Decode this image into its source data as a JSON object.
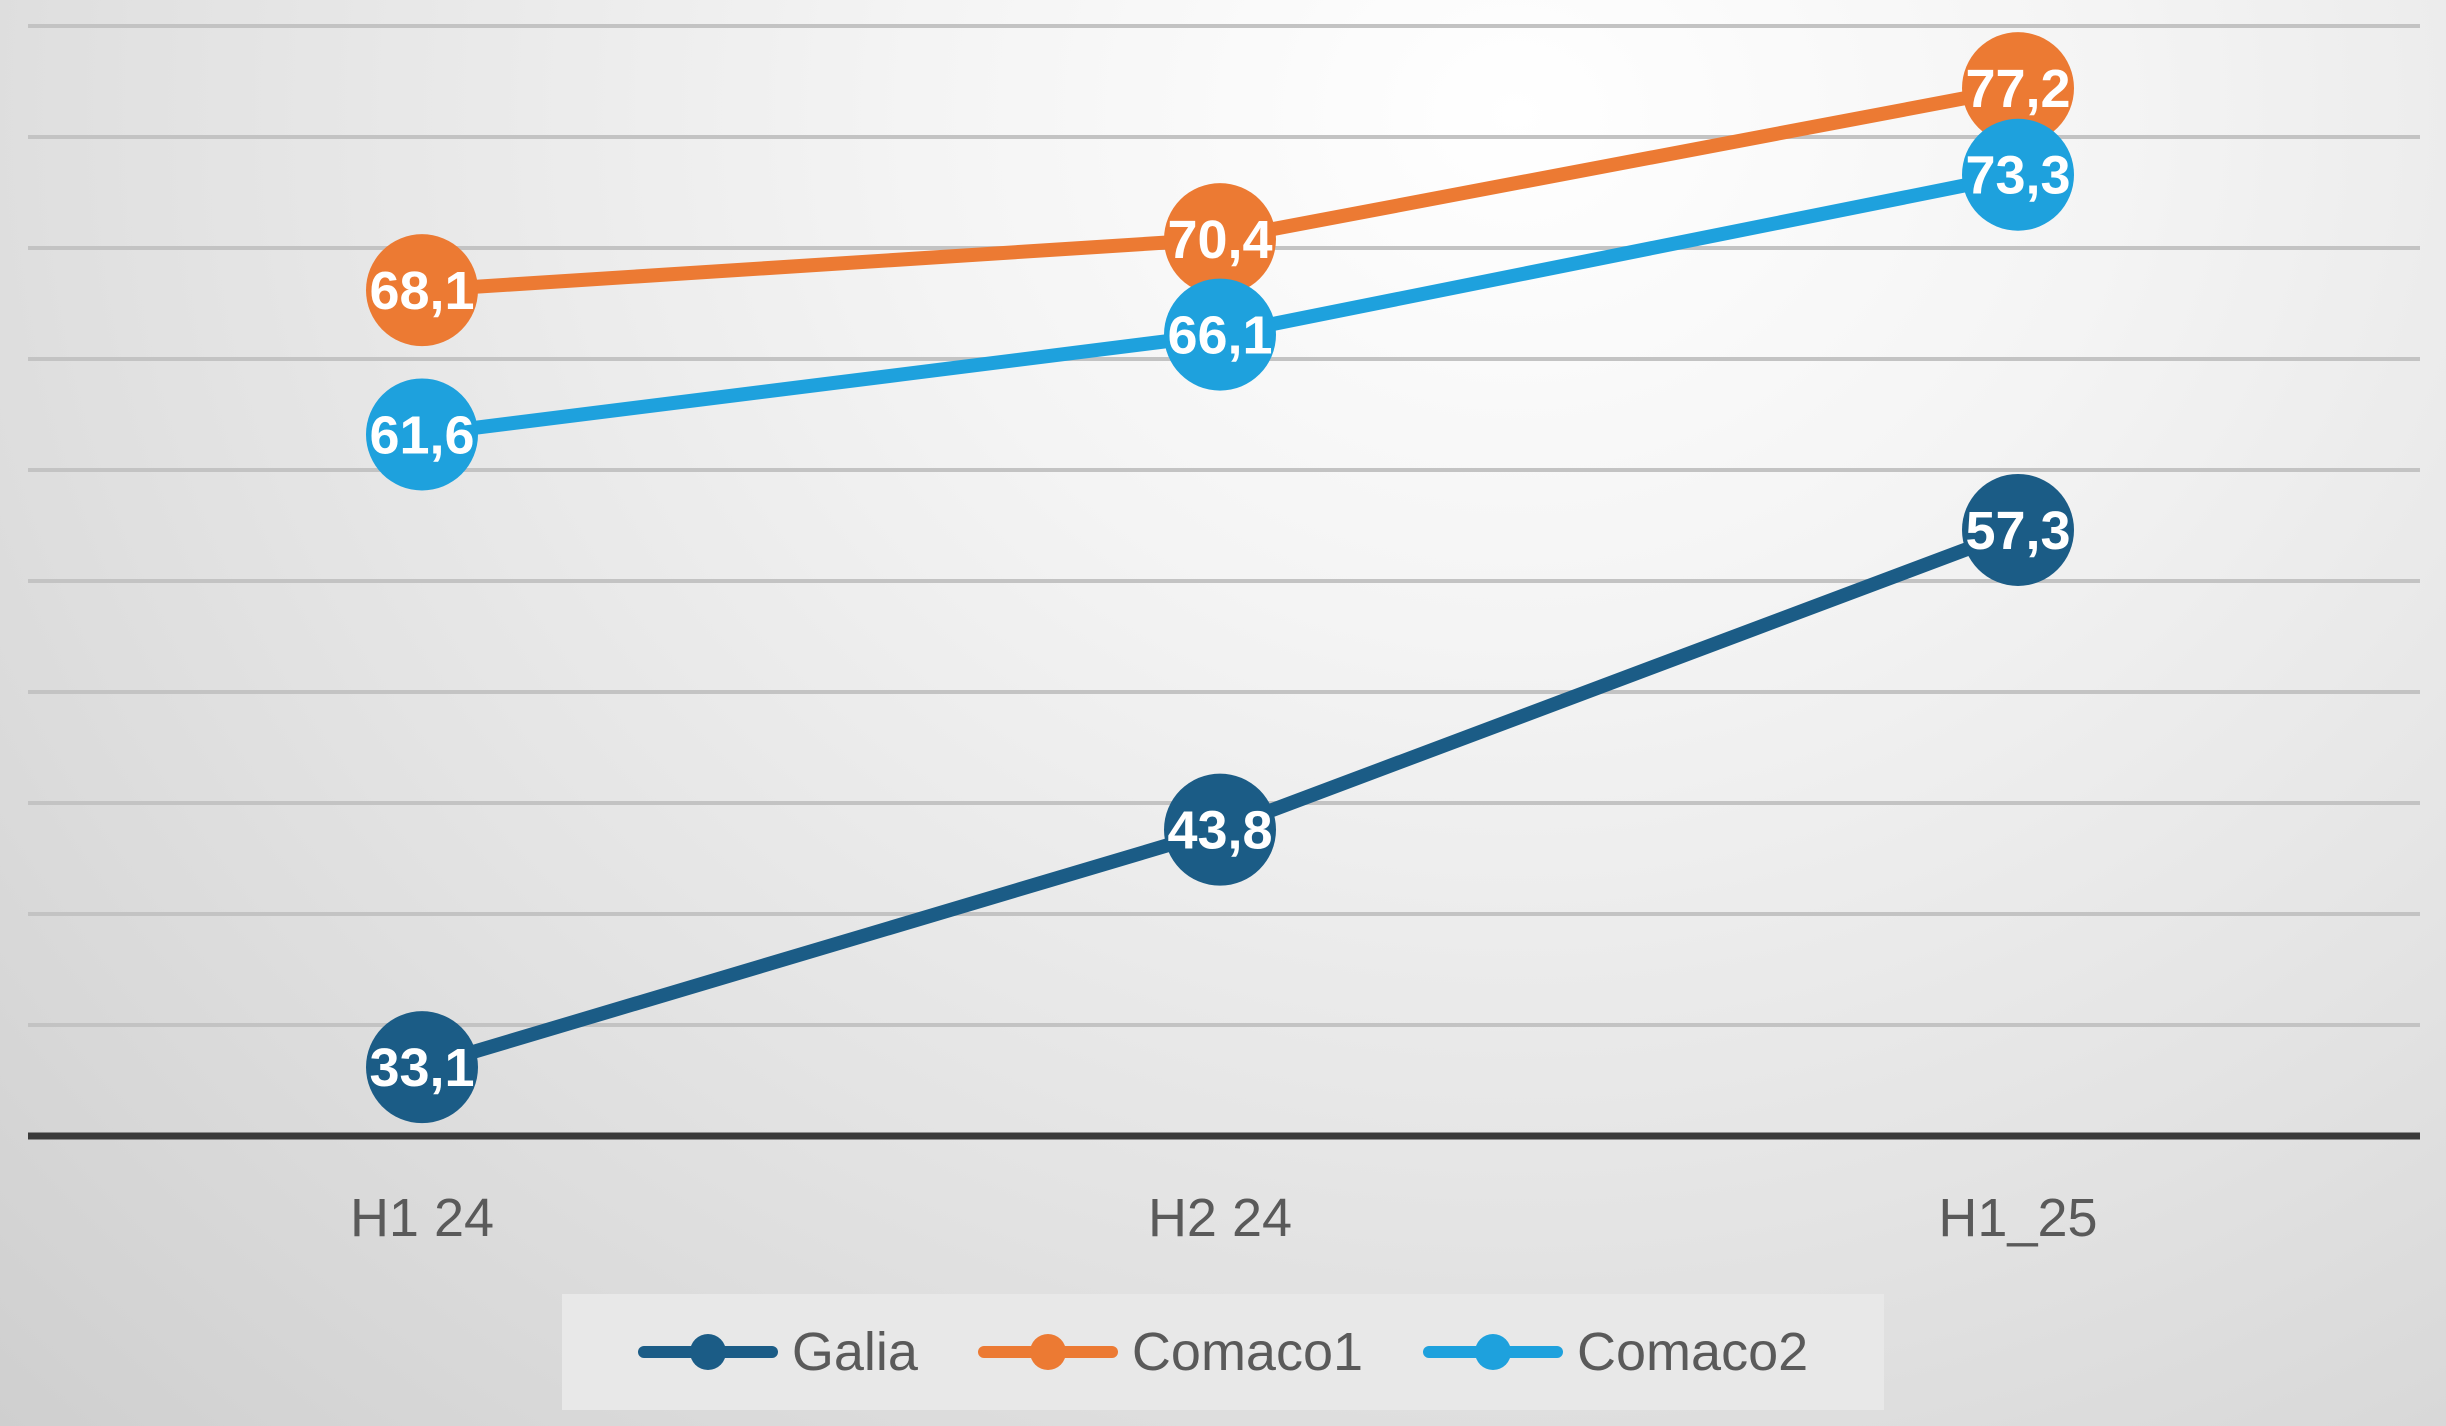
{
  "chart_data": {
    "type": "line",
    "title": "",
    "xlabel": "",
    "ylabel": "",
    "categories": [
      "H1 24",
      "H2 24",
      "H1_25"
    ],
    "ylim": [
      30,
      80
    ],
    "grid": true,
    "legend_position": "bottom",
    "series": [
      {
        "name": "Galia",
        "color": "#1b5c86",
        "values": [
          33.1,
          43.8,
          57.3
        ],
        "labels": [
          "33,1",
          "43,8",
          "57,3"
        ]
      },
      {
        "name": "Comaco1",
        "color": "#ec7a33",
        "values": [
          68.1,
          70.4,
          77.2
        ],
        "labels": [
          "68,1",
          "70,4",
          "77,2"
        ]
      },
      {
        "name": "Comaco2",
        "color": "#1ea1dd",
        "values": [
          61.6,
          66.1,
          73.3
        ],
        "labels": [
          "61,6",
          "66,1",
          "73,3"
        ]
      }
    ]
  }
}
